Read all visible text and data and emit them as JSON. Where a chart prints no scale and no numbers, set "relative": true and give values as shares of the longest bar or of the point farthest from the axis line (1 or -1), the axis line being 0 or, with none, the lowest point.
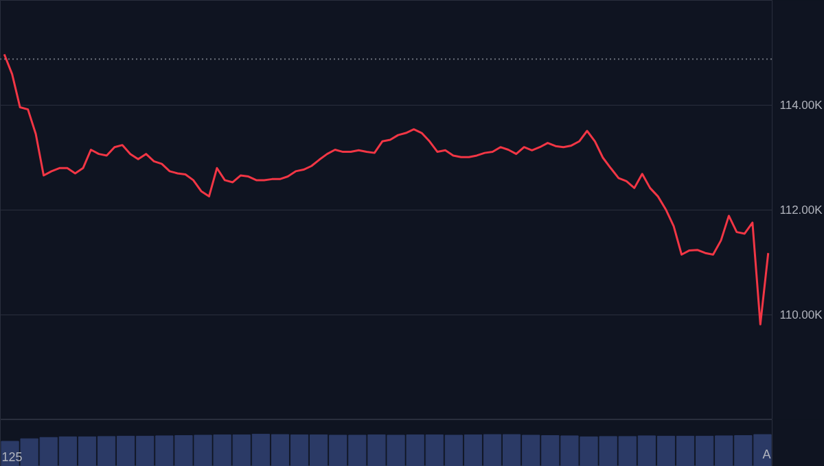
{
  "chart_data": [
    {
      "type": "line",
      "categories": [
        null,
        null,
        null,
        null,
        null,
        null,
        null,
        null,
        null,
        null,
        null,
        null,
        null,
        null,
        null,
        null,
        null,
        null,
        null,
        null,
        null,
        null,
        null,
        null,
        null,
        null,
        null,
        null,
        null,
        null,
        null,
        null,
        null,
        null,
        null,
        null,
        null,
        null,
        null,
        null,
        null,
        null,
        null,
        null,
        null,
        null,
        null,
        null,
        null,
        null,
        null,
        null,
        null,
        null,
        null,
        null,
        null,
        null,
        null,
        null,
        null,
        null,
        null,
        null,
        null,
        null,
        null,
        null,
        null,
        null,
        null,
        null,
        null,
        null,
        null,
        null,
        null,
        null,
        null,
        null,
        null,
        null,
        null,
        null,
        null,
        null,
        null,
        null,
        null,
        null,
        null,
        null,
        null,
        null,
        null,
        null,
        null,
        null
      ],
      "series": [
        {
          "color": "#f23645",
          "values": [
            114.97,
            114.59,
            113.96,
            113.92,
            113.45,
            112.66,
            112.74,
            112.8,
            112.8,
            112.7,
            112.8,
            113.15,
            113.07,
            113.04,
            113.2,
            113.24,
            113.07,
            112.97,
            113.07,
            112.93,
            112.88,
            112.74,
            112.7,
            112.68,
            112.57,
            112.36,
            112.26,
            112.8,
            112.57,
            112.53,
            112.66,
            112.64,
            112.57,
            112.57,
            112.59,
            112.59,
            112.64,
            112.74,
            112.77,
            112.84,
            112.96,
            113.07,
            113.15,
            113.11,
            113.11,
            113.14,
            113.11,
            113.09,
            113.31,
            113.34,
            113.43,
            113.47,
            113.54,
            113.47,
            113.31,
            113.11,
            113.14,
            113.04,
            113.01,
            113.01,
            113.04,
            113.09,
            113.11,
            113.2,
            113.15,
            113.07,
            113.2,
            113.14,
            113.2,
            113.28,
            113.22,
            113.2,
            113.23,
            113.31,
            113.51,
            113.31,
            113.0,
            112.8,
            112.61,
            112.55,
            112.42,
            112.69,
            112.42,
            112.26,
            112.01,
            111.69,
            111.15,
            111.23,
            111.24,
            111.18,
            111.15,
            111.42,
            111.89,
            111.58,
            111.55,
            111.76,
            109.82,
            111.18
          ]
        }
      ],
      "ylim": [
        108,
        116
      ],
      "yticks": [
        {
          "value": 110,
          "label": "110.00K"
        },
        {
          "value": 112,
          "label": "112.00K"
        },
        {
          "value": 114,
          "label": "114.00K"
        }
      ],
      "grid": "y",
      "tick_labels": "y",
      "line_style": "solid",
      "marker": "none",
      "ref_lines": [
        {
          "axis": "y",
          "value": 114.88,
          "color": "#c8ccd6",
          "line_style": "dotted"
        }
      ]
    },
    {
      "type": "bar",
      "relative": true,
      "color": "#2b3a66",
      "categories": [
        null,
        null,
        null,
        null,
        null,
        null,
        null,
        null,
        null,
        null,
        null,
        null,
        null,
        null,
        null,
        null,
        null,
        null,
        null,
        null,
        null,
        null,
        null,
        null,
        null,
        null,
        null,
        null,
        null,
        null,
        null,
        null,
        null,
        null,
        null,
        null,
        null,
        null,
        null,
        null
      ],
      "values": [
        0.78,
        0.86,
        0.9,
        0.92,
        0.92,
        0.93,
        0.94,
        0.94,
        0.95,
        0.96,
        0.97,
        0.98,
        0.98,
        1,
        0.99,
        0.98,
        0.98,
        0.97,
        0.97,
        0.98,
        0.97,
        0.98,
        0.98,
        0.97,
        0.98,
        0.99,
        0.99,
        0.97,
        0.96,
        0.95,
        0.92,
        0.93,
        0.93,
        0.95,
        0.94,
        0.94,
        0.94,
        0.95,
        0.96,
        0.99
      ],
      "tick_labels": false,
      "annotations": [
        "125",
        "A"
      ]
    }
  ]
}
